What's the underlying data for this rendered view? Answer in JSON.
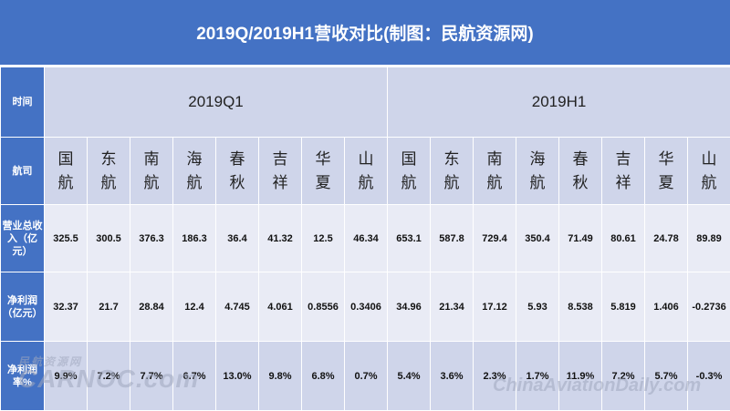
{
  "title": "2019Q/2019H1营收对比(制图：民航资源网)",
  "row_labels": {
    "period": "时间",
    "airline": "航司",
    "revenue": "营业总收入（亿元）",
    "net_profit": "净利润（亿元）",
    "net_margin": "净利润率%"
  },
  "periods": [
    "2019Q1",
    "2019H1"
  ],
  "airlines": [
    "国航",
    "东航",
    "南航",
    "海航",
    "春秋",
    "吉祥",
    "华夏",
    "山航",
    "国航",
    "东航",
    "南航",
    "海航",
    "春秋",
    "吉祥",
    "华夏",
    "山航"
  ],
  "revenue": [
    "325.5",
    "300.5",
    "376.3",
    "186.3",
    "36.4",
    "41.32",
    "12.5",
    "46.34",
    "653.1",
    "587.8",
    "729.4",
    "350.4",
    "71.49",
    "80.61",
    "24.78",
    "89.89"
  ],
  "net_profit": [
    "32.37",
    "21.7",
    "28.84",
    "12.4",
    "4.745",
    "4.061",
    "0.8556",
    "0.3406",
    "34.96",
    "21.34",
    "17.12",
    "5.93",
    "8.538",
    "5.819",
    "1.406",
    "-0.2736"
  ],
  "net_margin": [
    "9.9%",
    "7.2%",
    "7.7%",
    "6.7%",
    "13.0%",
    "9.8%",
    "6.8%",
    "0.7%",
    "5.4%",
    "3.6%",
    "2.3%",
    "1.7%",
    "11.9%",
    "7.2%",
    "5.7%",
    "-0.3%"
  ],
  "watermark": {
    "line1": "民航资源网",
    "line2": "CARNOC.com",
    "line3": "ChinaAviationDaily.com"
  }
}
